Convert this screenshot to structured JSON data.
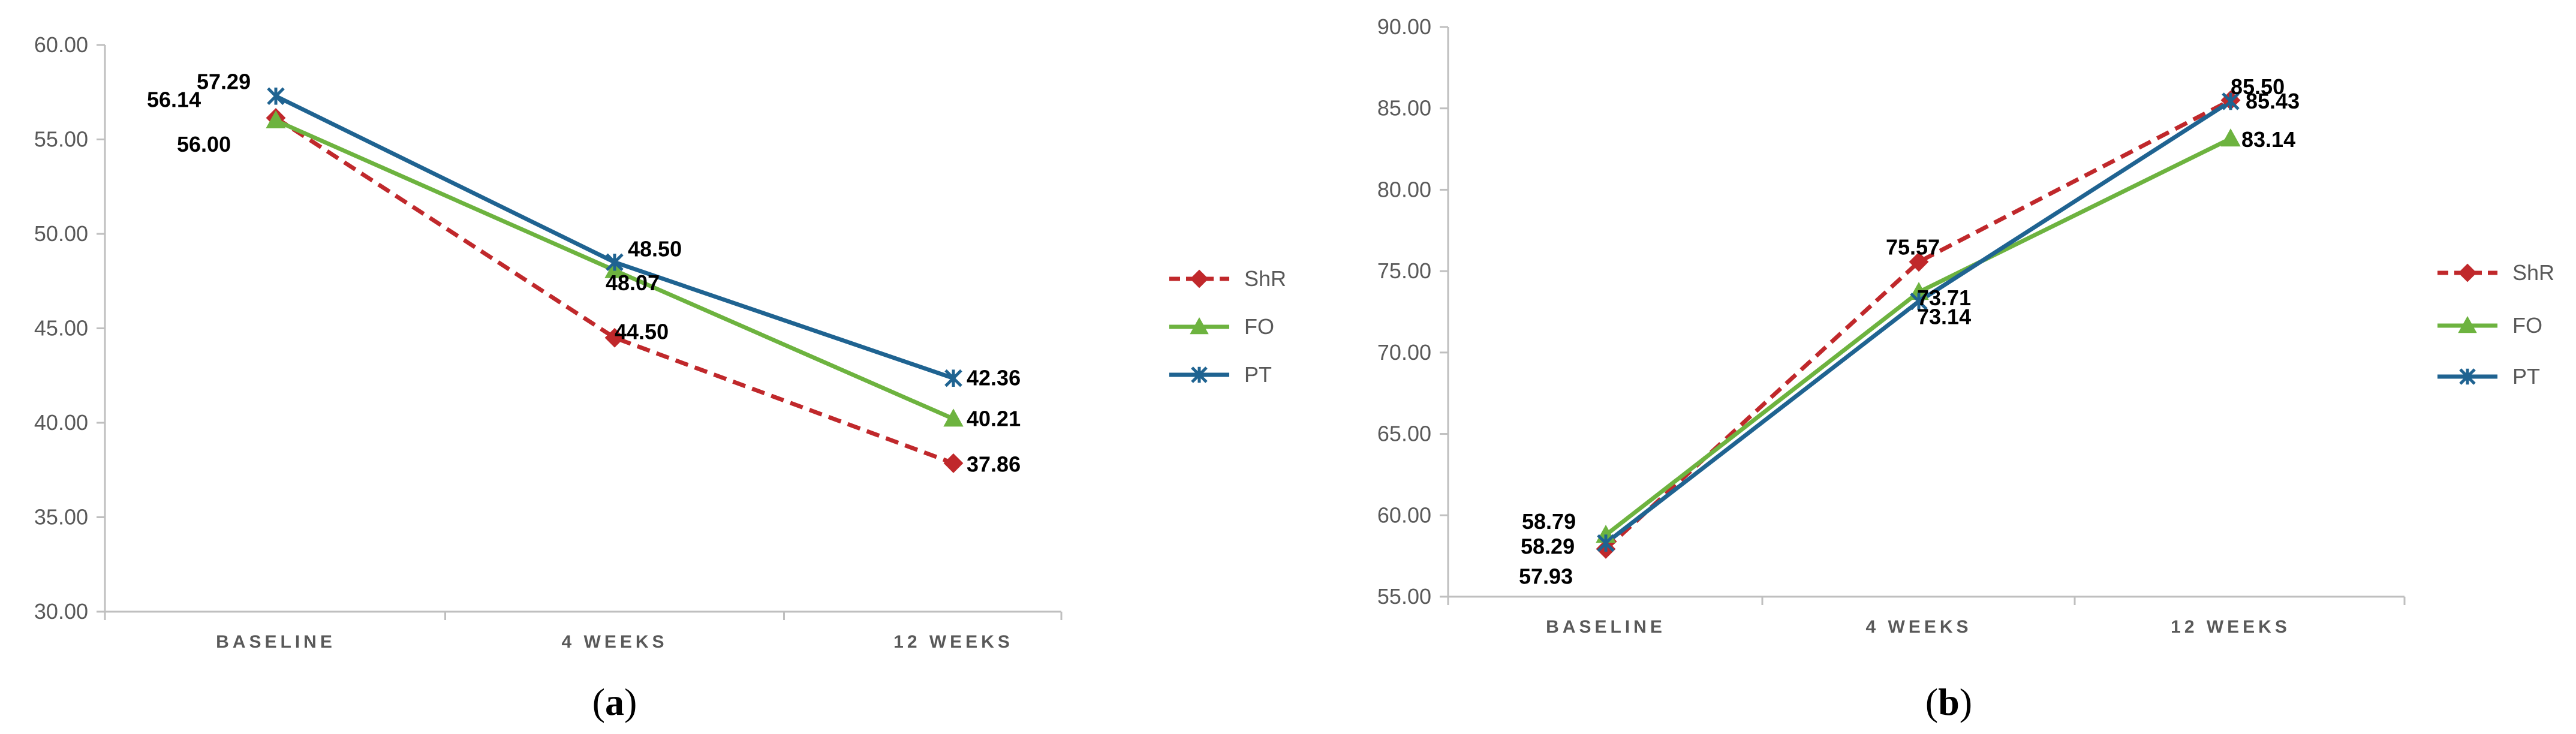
{
  "panels": [
    {
      "label": "a",
      "chart_data": {
        "type": "line",
        "categories": [
          "BASELINE",
          "4 WEEKS",
          "12 WEEKS"
        ],
        "series": [
          {
            "name": "ShR",
            "values": [
              56.14,
              44.5,
              37.86
            ],
            "value_labels": [
              "56.14",
              "44.50",
              "37.86"
            ],
            "color": "#c0282b",
            "dash": true,
            "marker": "diamond"
          },
          {
            "name": "FO",
            "values": [
              56.0,
              48.07,
              40.21
            ],
            "value_labels": [
              "56.00",
              "48.07",
              "40.21"
            ],
            "color": "#6db33f",
            "dash": false,
            "marker": "triangle"
          },
          {
            "name": "PT",
            "values": [
              57.29,
              48.5,
              42.36
            ],
            "value_labels": [
              "57.29",
              "48.50",
              "42.36"
            ],
            "color": "#1f6391",
            "dash": false,
            "marker": "star"
          }
        ],
        "ylim": [
          30,
          60
        ],
        "yticks": [
          "30.00",
          "35.00",
          "40.00",
          "45.00",
          "50.00",
          "55.00",
          "60.00"
        ],
        "legend": "right"
      }
    },
    {
      "label": "b",
      "chart_data": {
        "type": "line",
        "categories": [
          "BASELINE",
          "4 WEEKS",
          "12 WEEKS"
        ],
        "series": [
          {
            "name": "ShR",
            "values": [
              57.93,
              75.57,
              85.5
            ],
            "value_labels": [
              "57.93",
              "75.57",
              "85.50"
            ],
            "color": "#c0282b",
            "dash": true,
            "marker": "diamond"
          },
          {
            "name": "FO",
            "values": [
              58.79,
              73.71,
              83.14
            ],
            "value_labels": [
              "58.79",
              "73.71",
              "83.14"
            ],
            "color": "#6db33f",
            "dash": false,
            "marker": "triangle"
          },
          {
            "name": "PT",
            "values": [
              58.29,
              73.14,
              85.43
            ],
            "value_labels": [
              "58.29",
              "73.14",
              "85.43"
            ],
            "color": "#1f6391",
            "dash": false,
            "marker": "star"
          }
        ],
        "ylim": [
          55,
          90
        ],
        "yticks": [
          "55.00",
          "60.00",
          "65.00",
          "70.00",
          "75.00",
          "80.00",
          "85.00",
          "90.00"
        ],
        "legend": "right"
      }
    }
  ]
}
